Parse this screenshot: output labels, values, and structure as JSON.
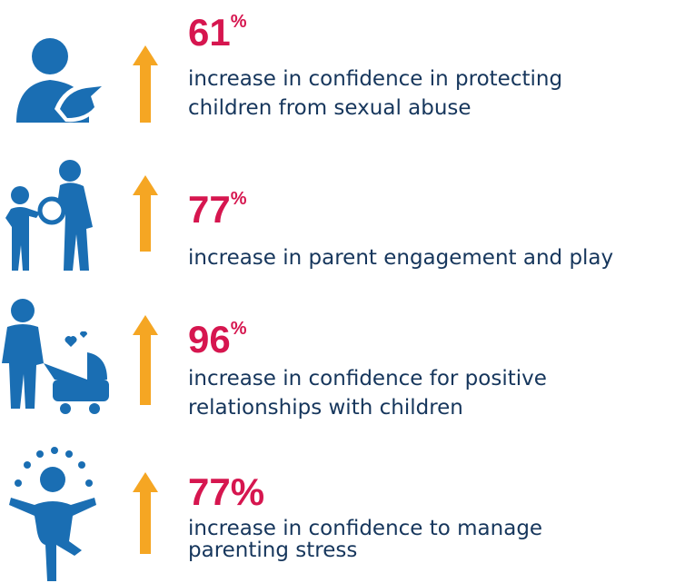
{
  "items": [
    {
      "value": "61",
      "suffix": "%",
      "superscript": true,
      "lines": [
        "increase in confidence in protecting",
        "children from sexual abuse"
      ]
    },
    {
      "value": "77",
      "suffix": "%",
      "superscript": true,
      "lines": [
        "increase in parent engagement and play"
      ]
    },
    {
      "value": "96",
      "suffix": "%",
      "superscript": true,
      "lines": [
        "increase in confidence for positive",
        "relationships with children"
      ]
    },
    {
      "value": "77",
      "suffix": "%",
      "superscript": false,
      "lines": [
        "increase in confidence to manage",
        "parenting stress"
      ]
    }
  ]
}
